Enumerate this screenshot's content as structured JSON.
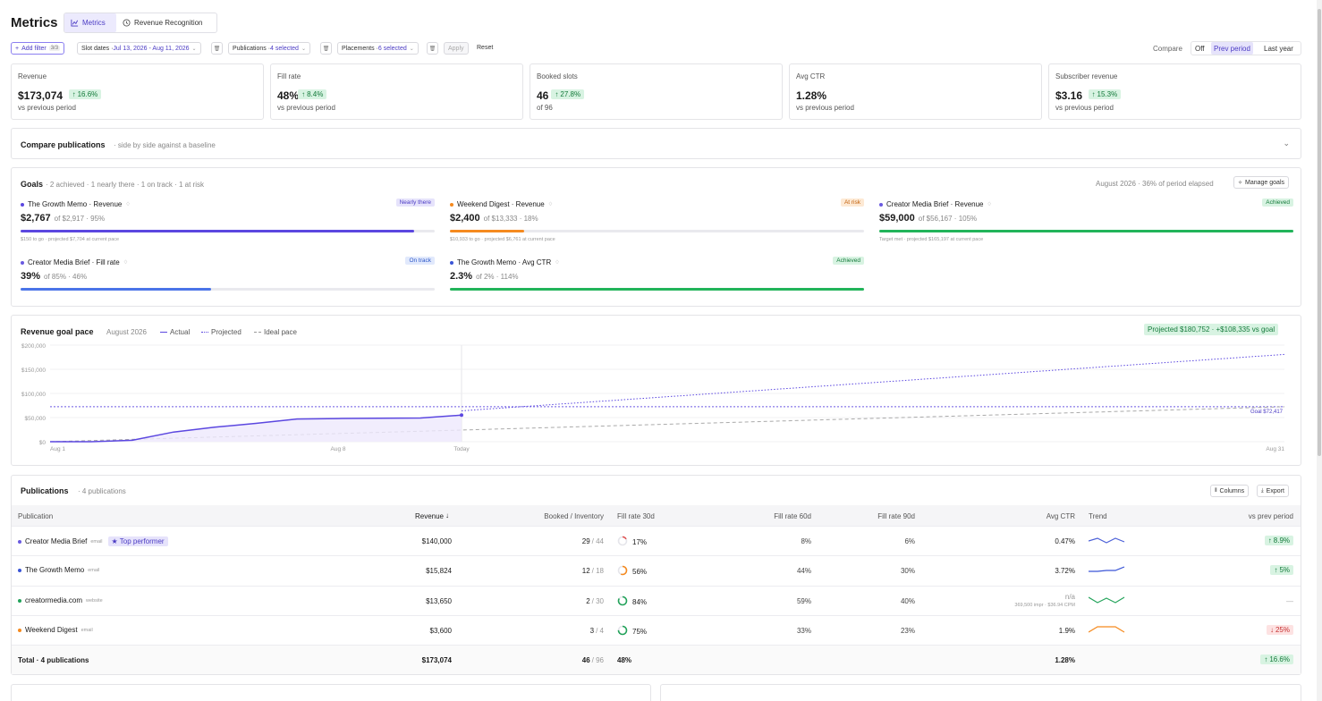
{
  "header": {
    "title": "Metrics",
    "tabs": [
      {
        "label": "Metrics",
        "active": true,
        "icon": "chart-line-icon"
      },
      {
        "label": "Revenue Recognition",
        "active": false,
        "icon": "clock-icon"
      }
    ]
  },
  "filters": {
    "add_filter_label": "Add filter",
    "add_filter_count": "3/3",
    "slot_dates_label": "Slot dates · ",
    "slot_dates_value": "Jul 13, 2026 - Aug 11, 2026",
    "publications_label": "Publications · ",
    "publications_value": "4 selected",
    "placements_label": "Placements · ",
    "placements_value": "6 selected",
    "apply_label": "Apply",
    "reset_label": "Reset",
    "compare_label": "Compare",
    "compare_options": [
      "Off",
      "Prev period",
      "Last year"
    ],
    "compare_selected": "Prev period"
  },
  "kpis": [
    {
      "label": "Revenue",
      "value": "$173,074",
      "delta": "16.6%",
      "sub": "vs previous period"
    },
    {
      "label": "Fill rate",
      "value": "48%",
      "delta": "8.4%",
      "sub": "vs previous period"
    },
    {
      "label": "Booked slots",
      "value": "46",
      "delta": "27.8%",
      "sub": "of 96"
    },
    {
      "label": "Avg CTR",
      "value": "1.28%",
      "delta": "",
      "sub": "vs previous period"
    },
    {
      "label": "Subscriber revenue",
      "value": "$3.16",
      "delta": "15.3%",
      "sub": "vs previous period"
    }
  ],
  "compare_pubs": {
    "title": "Compare publications",
    "subtitle": "· side by side against a baseline"
  },
  "goals": {
    "title": "Goals",
    "summary": "· 2 achieved · 1 nearly there · 1 on track · 1 at risk",
    "period_note": "August 2026 · 36% of period elapsed",
    "manage_label": "Manage goals",
    "items": [
      {
        "name": "The Growth Memo · Revenue",
        "status": "Nearly there",
        "value": "$2,767",
        "target": "of $2,917 · 95%",
        "note": "$150 to go · projected $7,704 at current pace",
        "progress": 0.95,
        "color": "#5b47e0",
        "dot": "#5b47e0",
        "status_bg": "#e6e3fb",
        "status_fg": "#4b3bc4"
      },
      {
        "name": "Weekend Digest · Revenue",
        "status": "At risk",
        "value": "$2,400",
        "target": "of $13,333 · 18%",
        "note": "$10,933 to go · projected $6,761 at current pace",
        "progress": 0.18,
        "color": "#f58a1f",
        "dot": "#f58a1f",
        "status_bg": "#fde9d4",
        "status_fg": "#c2610c"
      },
      {
        "name": "Creator Media Brief · Revenue",
        "status": "Achieved",
        "value": "$59,000",
        "target": "of $56,167 · 105%",
        "note": "Target met · projected $165,197 at current pace",
        "progress": 1.0,
        "color": "#22b45a",
        "dot": "#6a5ae0",
        "status_bg": "#d8f3e2",
        "status_fg": "#137a3a"
      },
      {
        "name": "Creator Media Brief · Fill rate",
        "status": "On track",
        "value": "39%",
        "target": "of 85% · 46%",
        "note": "",
        "progress": 0.46,
        "color": "#4a74e8",
        "dot": "#6a5ae0",
        "status_bg": "#e1e9fc",
        "status_fg": "#2d57c9"
      },
      {
        "name": "The Growth Memo · Avg CTR",
        "status": "Achieved",
        "value": "2.3%",
        "target": "of 2% · 114%",
        "note": "",
        "progress": 1.0,
        "color": "#22b45a",
        "dot": "#3a55d6",
        "status_bg": "#d8f3e2",
        "status_fg": "#137a3a"
      }
    ]
  },
  "pace": {
    "title": "Revenue goal pace",
    "period": "August 2026",
    "legend": [
      "Actual",
      "Projected",
      "Ideal pace"
    ],
    "badge": "Projected $180,752 · +$108,335 vs goal",
    "goal_label": "Goal $72,417"
  },
  "chart_data": {
    "type": "line",
    "x_tick_labels": [
      "Aug 1",
      "Aug 8",
      "Today",
      "Aug 31"
    ],
    "y_tick_labels": [
      "$200,000",
      "$150,000",
      "$100,000",
      "$50,000",
      "$0"
    ],
    "ylim": [
      0,
      200000
    ],
    "xlim": [
      1,
      31
    ],
    "today_x": 11,
    "goal": 72417,
    "series": [
      {
        "name": "Actual",
        "x": [
          1,
          2,
          3,
          4,
          5,
          6,
          7,
          8,
          9,
          10,
          11
        ],
        "values": [
          0,
          0,
          3000,
          20000,
          30000,
          38000,
          47000,
          48000,
          48500,
          49000,
          55000
        ]
      },
      {
        "name": "Projected",
        "x": [
          11,
          31
        ],
        "values": [
          64000,
          180752
        ]
      },
      {
        "name": "Ideal pace",
        "x": [
          1,
          31
        ],
        "values": [
          0,
          72417
        ]
      }
    ]
  },
  "publications": {
    "title": "Publications",
    "count": "· 4 publications",
    "columns_label": "Columns",
    "export_label": "Export",
    "headers": [
      "Publication",
      "Revenue",
      "Booked / Inventory",
      "Fill rate 30d",
      "Fill rate 60d",
      "Fill rate 90d",
      "Avg CTR",
      "Trend",
      "vs prev period"
    ],
    "top_badge": "★ Top performer",
    "rows": [
      {
        "name": "Creator Media Brief",
        "type": "email",
        "dot": "#6a5ae0",
        "revenue": "$140,000",
        "booked": "29",
        "inventory": "/ 44",
        "fill30": "17%",
        "fill30_v": 0.17,
        "fill30_color": "#e05252",
        "fill60": "8%",
        "fill90": "6%",
        "ctr": "0.47%",
        "ctr_sub": "",
        "delta": "8.9%",
        "dir": "up",
        "trend_color": "#4a5fd8",
        "trend": [
          6,
          3,
          8,
          3,
          7
        ]
      },
      {
        "name": "The Growth Memo",
        "type": "email",
        "dot": "#3a55d6",
        "revenue": "$15,824",
        "booked": "12",
        "inventory": "/ 18",
        "fill30": "56%",
        "fill30_v": 0.56,
        "fill30_color": "#f58a1f",
        "fill60": "44%",
        "fill90": "30%",
        "ctr": "3.72%",
        "ctr_sub": "",
        "delta": "5%",
        "dir": "up",
        "trend_color": "#3a55d6",
        "trend": [
          7,
          7,
          6,
          6,
          2
        ]
      },
      {
        "name": "creatormedia.com",
        "type": "website",
        "dot": "#22a35a",
        "revenue": "$13,650",
        "booked": "2",
        "inventory": "/ 30",
        "fill30": "84%",
        "fill30_v": 0.84,
        "fill30_color": "#22a35a",
        "fill60": "59%",
        "fill90": "40%",
        "ctr": "n/a",
        "ctr_sub": "369,500 impr · $36.94 CPM",
        "delta": "—",
        "dir": "none",
        "trend_color": "#22a35a",
        "trend": [
          2,
          8,
          3,
          8,
          2
        ]
      },
      {
        "name": "Weekend Digest",
        "type": "email",
        "dot": "#f58a1f",
        "revenue": "$3,600",
        "booked": "3",
        "inventory": "/ 4",
        "fill30": "75%",
        "fill30_v": 0.75,
        "fill30_color": "#22a35a",
        "fill60": "33%",
        "fill90": "23%",
        "ctr": "1.9%",
        "ctr_sub": "",
        "delta": "25%",
        "dir": "down",
        "trend_color": "#f58a1f",
        "trend": [
          8,
          2,
          2,
          2,
          8
        ]
      }
    ],
    "total": {
      "label": "Total · 4 publications",
      "revenue": "$173,074",
      "booked": "46",
      "inventory": "/ 96",
      "fill30": "48%",
      "ctr": "1.28%",
      "delta": "16.6%"
    }
  }
}
